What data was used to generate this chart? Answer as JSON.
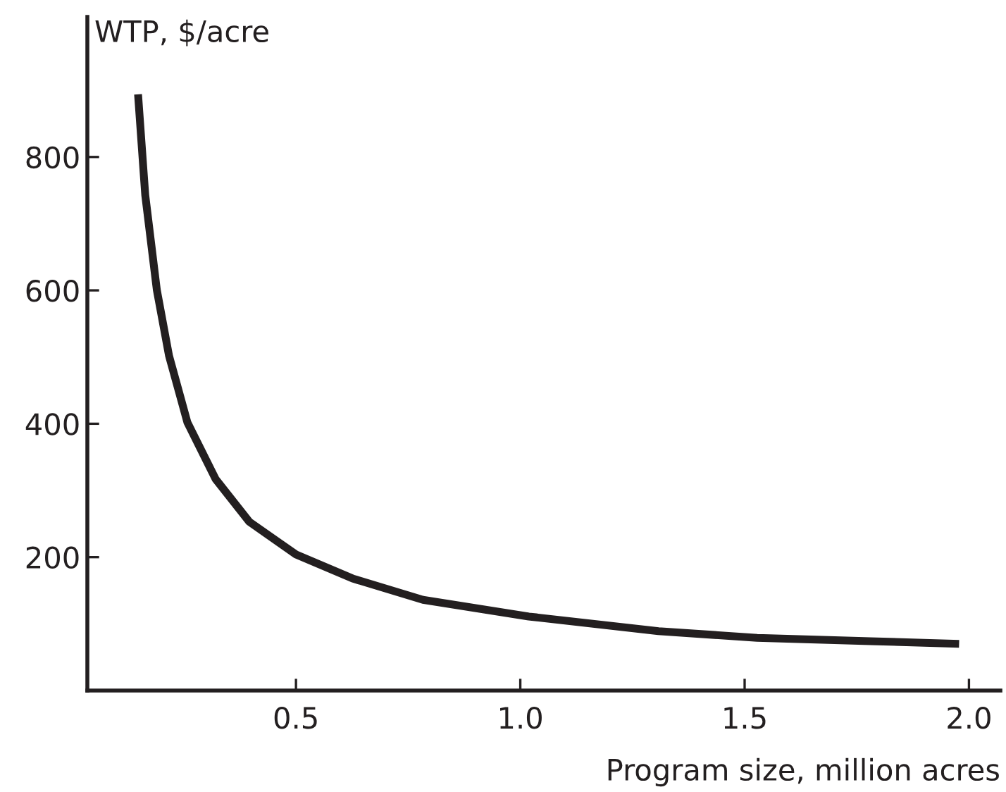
{
  "chart_data": {
    "type": "line",
    "xlabel": "Program size, million acres",
    "ylabel": "WTP, $/acre",
    "x": [
      0.148,
      0.164,
      0.19,
      0.217,
      0.258,
      0.321,
      0.396,
      0.5,
      0.626,
      0.783,
      1.019,
      1.308,
      1.528,
      1.78,
      1.978
    ],
    "series": [
      {
        "color": "#231f20",
        "values": [
          894,
          743,
          600,
          502,
          402,
          317,
          253,
          204,
          168,
          136,
          111,
          89,
          79,
          74,
          70
        ]
      }
    ],
    "xlim": [
      0.035,
      2.07
    ],
    "ylim": [
      0,
      1010
    ],
    "xticks": [
      0.5,
      {
        "value": 1,
        "label": "1.0"
      },
      1.5,
      {
        "value": 2,
        "label": "2.0"
      }
    ],
    "yticks": [
      200,
      400,
      600,
      800
    ],
    "grid": false,
    "legend": false,
    "marker": "none",
    "line_style": "solid"
  }
}
